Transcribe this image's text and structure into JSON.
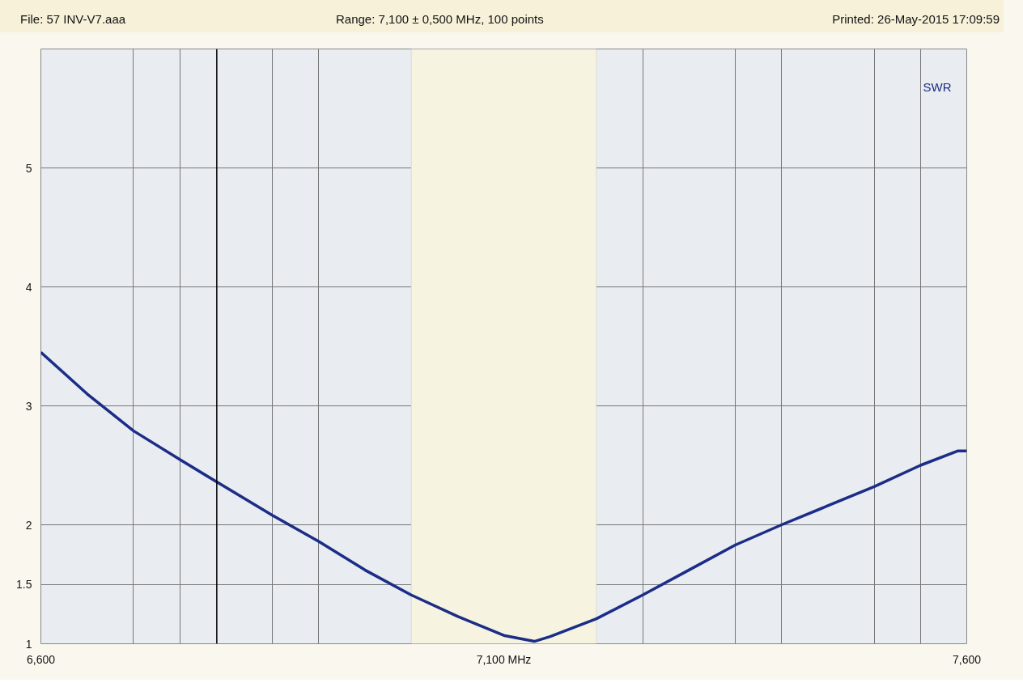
{
  "chart_data": {
    "type": "line",
    "annotations": [
      "File: 57 INV-V7.aaa",
      "Range: 7,100 ± 0,500 MHz, 100 points",
      "Printed: 26-May-2015 17:09:59"
    ],
    "x": [
      6600,
      6650,
      6700,
      6750,
      6790,
      6850,
      6900,
      6950,
      7000,
      7050,
      7100,
      7133,
      7150,
      7200,
      7250,
      7300,
      7350,
      7400,
      7450,
      7500,
      7550,
      7590,
      7600
    ],
    "series": [
      {
        "name": "SWR",
        "color": "#1b2d86",
        "values": [
          3.45,
          3.1,
          2.79,
          2.55,
          2.36,
          2.08,
          1.86,
          1.62,
          1.41,
          1.23,
          1.07,
          1.02,
          1.06,
          1.21,
          1.41,
          1.62,
          1.83,
          2.0,
          2.16,
          2.32,
          2.5,
          2.62,
          2.62
        ]
      }
    ],
    "xlim": [
      6600,
      7600
    ],
    "ylim": [
      1,
      6
    ],
    "xticks": [
      {
        "value": 6600,
        "label": "6,600"
      },
      {
        "value": 6700,
        "label": null
      },
      {
        "value": 6750,
        "label": null
      },
      {
        "value": 6850,
        "label": null
      },
      {
        "value": 6900,
        "label": null
      },
      {
        "value": 7000,
        "label": null
      },
      {
        "value": 7050,
        "label": null
      },
      {
        "value": 7100,
        "label": "7,100 MHz"
      },
      {
        "value": 7150,
        "label": null
      },
      {
        "value": 7200,
        "label": null
      },
      {
        "value": 7250,
        "label": null
      },
      {
        "value": 7350,
        "label": null
      },
      {
        "value": 7400,
        "label": null
      },
      {
        "value": 7500,
        "label": null
      },
      {
        "value": 7550,
        "label": null
      },
      {
        "value": 7600,
        "label": "7,600"
      }
    ],
    "yticks": [
      1,
      1.5,
      2,
      3,
      4,
      5
    ],
    "ref_lines": [
      {
        "axis": "x",
        "value": 6790,
        "color": "#000000"
      }
    ],
    "bands": [
      {
        "axis": "x",
        "from": 7000,
        "to": 7200,
        "color": "#f6f3e1"
      }
    ],
    "grid": true,
    "legend": "top right",
    "line_style": "solid",
    "marker": "none"
  }
}
